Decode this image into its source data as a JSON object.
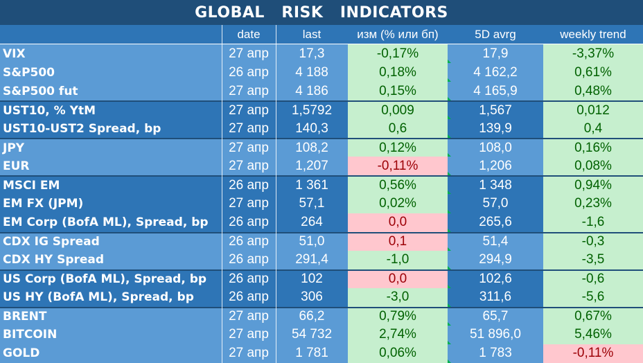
{
  "title": "GLOBAL   RISK   INDICATORS",
  "headers": {
    "date": "date",
    "last": "last",
    "change": "изм (% или бп)",
    "avg": "5D avrg",
    "weekly": "weekly trend"
  },
  "colors": {
    "title_bg": "#1f4e79",
    "header_bg": "#2e75b6",
    "name_bg_light": "#5b9bd5",
    "name_bg_dark": "#2e75b6",
    "positive_bg": "#c6efce",
    "positive_text": "#006100",
    "negative_bg": "#ffc7ce",
    "negative_text": "#9c0006"
  },
  "rows": [
    {
      "name": "VIX",
      "date": "27 апр",
      "last": "17,3",
      "change": "-0,17%",
      "change_state": "positive",
      "avg": "17,9",
      "weekly": "-3,37%",
      "weekly_state": "positive",
      "group": "light"
    },
    {
      "name": "S&P500",
      "date": "26 апр",
      "last": "4 188",
      "change": "0,18%",
      "change_state": "positive",
      "avg": "4 162,2",
      "weekly": "0,61%",
      "weekly_state": "positive",
      "group": "light"
    },
    {
      "name": "S&P500 fut",
      "date": "27 апр",
      "last": "4 186",
      "change": "0,15%",
      "change_state": "positive",
      "avg": "4 165,9",
      "weekly": "0,48%",
      "weekly_state": "positive",
      "group": "light"
    },
    {
      "name": "UST10, % YtM",
      "date": "27 апр",
      "last": "1,5792",
      "change": "0,009",
      "change_state": "positive",
      "avg": "1,567",
      "weekly": "0,012",
      "weekly_state": "positive",
      "group": "dark",
      "sep": true
    },
    {
      "name": "UST10-UST2 Spread, bp",
      "date": "27 апр",
      "last": "140,3",
      "change": "0,6",
      "change_state": "positive",
      "avg": "139,9",
      "weekly": "0,4",
      "weekly_state": "positive",
      "group": "dark"
    },
    {
      "name": "JPY",
      "date": "27 апр",
      "last": "108,2",
      "change": "0,12%",
      "change_state": "positive",
      "avg": "108,0",
      "weekly": "0,16%",
      "weekly_state": "positive",
      "group": "light",
      "sep": true
    },
    {
      "name": "EUR",
      "date": "27 апр",
      "last": "1,207",
      "change": "-0,11%",
      "change_state": "negative",
      "avg": "1,206",
      "weekly": "0,08%",
      "weekly_state": "positive",
      "group": "light"
    },
    {
      "name": "MSCI EM",
      "date": "26 апр",
      "last": "1 361",
      "change": "0,56%",
      "change_state": "positive",
      "avg": "1 348",
      "weekly": "0,94%",
      "weekly_state": "positive",
      "group": "dark",
      "sep": true
    },
    {
      "name": "EM FX (JPM)",
      "date": "27 апр",
      "last": "57,1",
      "change": "0,02%",
      "change_state": "positive",
      "avg": "57,0",
      "weekly": "0,23%",
      "weekly_state": "positive",
      "group": "dark"
    },
    {
      "name": "EM Corp (BofA ML), Spread, bp",
      "date": "26 апр",
      "last": "264",
      "change": "0,0",
      "change_state": "negative",
      "avg": "265,6",
      "weekly": "-1,6",
      "weekly_state": "positive",
      "group": "dark"
    },
    {
      "name": "CDX IG Spread",
      "date": "26 апр",
      "last": "51,0",
      "change": "0,1",
      "change_state": "negative",
      "avg": "51,4",
      "weekly": "-0,3",
      "weekly_state": "positive",
      "group": "light",
      "sep": true
    },
    {
      "name": "CDX HY Spread",
      "date": "26 апр",
      "last": "291,4",
      "change": "-1,0",
      "change_state": "positive",
      "avg": "294,9",
      "weekly": "-3,5",
      "weekly_state": "positive",
      "group": "light"
    },
    {
      "name": "US Corp (BofA ML), Spread, bp",
      "date": "26 апр",
      "last": "102",
      "change": "0,0",
      "change_state": "negative",
      "avg": "102,6",
      "weekly": "-0,6",
      "weekly_state": "positive",
      "group": "dark",
      "sep": true
    },
    {
      "name": "US HY (BofA ML), Spread, bp",
      "date": "26 апр",
      "last": "306",
      "change": "-3,0",
      "change_state": "positive",
      "avg": "311,6",
      "weekly": "-5,6",
      "weekly_state": "positive",
      "group": "dark"
    },
    {
      "name": "BRENT",
      "date": "27 апр",
      "last": "66,2",
      "change": "0,79%",
      "change_state": "positive",
      "avg": "65,7",
      "weekly": "0,67%",
      "weekly_state": "positive",
      "group": "light",
      "sep": true
    },
    {
      "name": "BITCOIN",
      "date": "27 апр",
      "last": "54 732",
      "change": "2,74%",
      "change_state": "positive",
      "avg": "51 896,0",
      "weekly": "5,46%",
      "weekly_state": "positive",
      "group": "light"
    },
    {
      "name": "GOLD",
      "date": "27 апр",
      "last": "1 781",
      "change": "0,06%",
      "change_state": "positive",
      "avg": "1 783",
      "weekly": "-0,11%",
      "weekly_state": "negative",
      "group": "light"
    }
  ]
}
